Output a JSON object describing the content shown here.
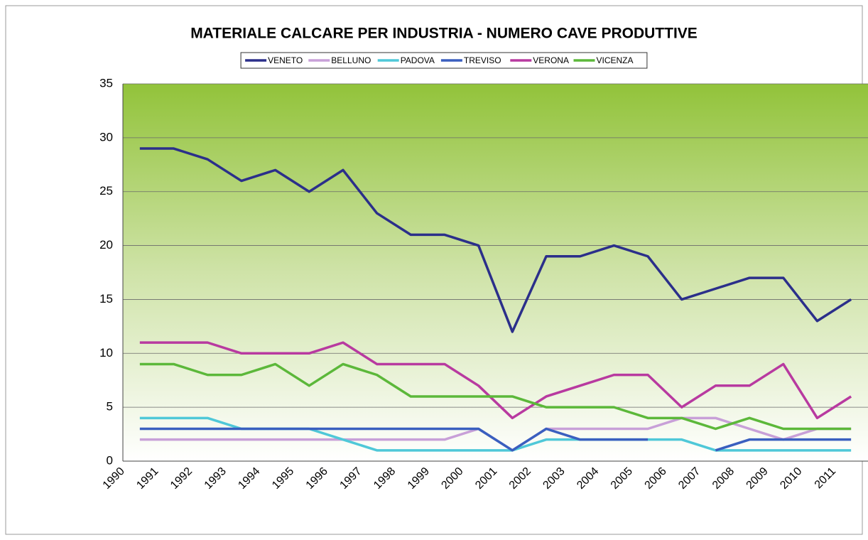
{
  "chart_data": {
    "type": "line",
    "title": "MATERIALE CALCARE PER INDUSTRIA - NUMERO CAVE PRODUTTIVE",
    "categories": [
      "1990",
      "1991",
      "1992",
      "1993",
      "1994",
      "1995",
      "1996",
      "1997",
      "1998",
      "1999",
      "2000",
      "2001",
      "2002",
      "2003",
      "2004",
      "2005",
      "2006",
      "2007",
      "2008",
      "2009",
      "2010",
      "2011"
    ],
    "series": [
      {
        "name": "VENETO",
        "color": "#2b2f8a",
        "values": [
          29,
          29,
          28,
          26,
          27,
          25,
          27,
          23,
          21,
          21,
          20,
          12,
          19,
          19,
          20,
          19,
          15,
          16,
          17,
          17,
          13,
          15
        ]
      },
      {
        "name": "BELLUNO",
        "color": "#c8a0d8",
        "values": [
          2,
          2,
          2,
          2,
          2,
          2,
          2,
          2,
          2,
          2,
          3,
          1,
          3,
          3,
          3,
          3,
          4,
          4,
          3,
          2,
          3,
          3
        ]
      },
      {
        "name": "PADOVA",
        "color": "#4fc8d8",
        "values": [
          4,
          4,
          4,
          3,
          3,
          3,
          2,
          1,
          1,
          1,
          1,
          1,
          2,
          2,
          2,
          2,
          2,
          1,
          1,
          1,
          1,
          1
        ]
      },
      {
        "name": "TREVISO",
        "color": "#3a5fbf",
        "values": [
          3,
          3,
          3,
          3,
          3,
          3,
          3,
          3,
          3,
          3,
          3,
          1,
          3,
          2,
          2,
          2,
          null,
          1,
          2,
          2,
          2,
          2
        ]
      },
      {
        "name": "VERONA",
        "color": "#b83aa0",
        "values": [
          11,
          11,
          11,
          10,
          10,
          10,
          11,
          9,
          9,
          9,
          7,
          4,
          6,
          7,
          8,
          8,
          5,
          7,
          7,
          9,
          4,
          6
        ]
      },
      {
        "name": "VICENZA",
        "color": "#5cb83a",
        "values": [
          9,
          9,
          8,
          8,
          9,
          7,
          9,
          8,
          6,
          6,
          6,
          6,
          5,
          5,
          5,
          4,
          4,
          3,
          4,
          3,
          3,
          3
        ]
      }
    ],
    "ylim": [
      0,
      35
    ],
    "yticks": [
      0,
      5,
      10,
      15,
      20,
      25,
      30,
      35
    ],
    "grid": true,
    "legend": "top"
  }
}
